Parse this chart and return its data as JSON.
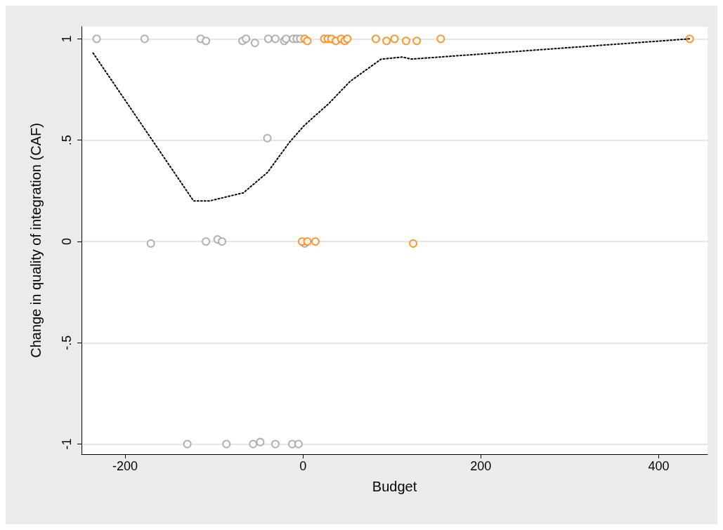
{
  "chart_data": {
    "type": "scatter",
    "xlabel": "Budget",
    "ylabel": "Change in quality of integration (CAF)",
    "xlim": [
      -249,
      455
    ],
    "ylim": [
      -1.05,
      1.06
    ],
    "xticks": [
      -200,
      0,
      200,
      400
    ],
    "yticks": [
      {
        "value": -1,
        "label": "-1"
      },
      {
        "value": -0.5,
        "label": "-.5"
      },
      0,
      {
        "value": 0.5,
        "label": ".5"
      },
      1
    ],
    "grid": "y",
    "marker": "circle",
    "series": [
      {
        "color": "#a0a0a0",
        "x": [
          -232,
          -178,
          -115,
          -109,
          -68,
          -64,
          -54,
          -39,
          -31,
          -21,
          -19,
          -11,
          -7,
          -3,
          -40,
          -171,
          -109,
          -96,
          -91,
          2,
          -130,
          -86,
          -56,
          -48,
          -31,
          -12,
          -5
        ],
        "values": [
          1,
          1,
          1,
          0.99,
          0.99,
          1,
          0.98,
          1,
          1,
          0.99,
          1,
          1,
          1,
          1,
          0.51,
          -0.01,
          0,
          0.01,
          0,
          -0.01,
          -1,
          -1,
          -1,
          -0.99,
          -1,
          -1,
          -1
        ]
      },
      {
        "color": "#ff8000",
        "x": [
          2,
          5,
          24,
          28,
          32,
          37,
          43,
          47,
          50,
          82,
          94,
          103,
          116,
          128,
          155,
          435,
          -1,
          5,
          14,
          124
        ],
        "values": [
          1,
          0.99,
          1,
          1,
          1,
          0.99,
          1,
          0.99,
          1,
          1,
          0.99,
          1,
          0.99,
          0.99,
          1,
          1,
          0,
          0,
          0,
          -0.01
        ]
      },
      {
        "type": "line",
        "color": "#000000",
        "line_style": "dotted",
        "marker": "none",
        "x": [
          -236,
          -123,
          -105,
          -67,
          -40,
          -15,
          1,
          11,
          29,
          53,
          88,
          112,
          122,
          435
        ],
        "values": [
          0.93,
          0.2,
          0.2,
          0.24,
          0.34,
          0.49,
          0.57,
          0.61,
          0.68,
          0.79,
          0.9,
          0.91,
          0.9,
          1
        ]
      }
    ]
  }
}
